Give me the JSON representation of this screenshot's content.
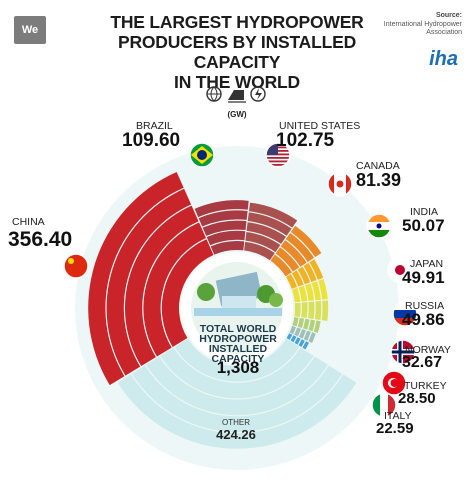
{
  "header": {
    "logo": "We",
    "title_line1": "THE LARGEST HYDROPOWER",
    "title_line2": "PRODUCERS BY INSTALLED CAPACITY",
    "title_line3": "IN THE WORLD",
    "source_label": "Source:",
    "source_name": "International Hydropower Association",
    "source_logo": "iha",
    "unit": "(GW)",
    "unit_icons": [
      "globe-icon",
      "dam-icon",
      "power-icon"
    ]
  },
  "center": {
    "title": "TOTAL WORLD HYDROPOWER INSTALLED CAPACITY",
    "value": "1,308"
  },
  "countries": [
    {
      "name": "CHINA",
      "value": "356.40",
      "flag": "china-flag"
    },
    {
      "name": "BRAZIL",
      "value": "109.60",
      "flag": "brazil-flag"
    },
    {
      "name": "UNITED STATES",
      "value": "102.75",
      "flag": "usa-flag"
    },
    {
      "name": "CANADA",
      "value": "81.39",
      "flag": "canada-flag"
    },
    {
      "name": "INDIA",
      "value": "50.07",
      "flag": "india-flag"
    },
    {
      "name": "JAPAN",
      "value": "49.91",
      "flag": "japan-flag"
    },
    {
      "name": "RUSSIA",
      "value": "49.86",
      "flag": "russia-flag"
    },
    {
      "name": "NORWAY",
      "value": "32.67",
      "flag": "norway-flag"
    },
    {
      "name": "TURKEY",
      "value": "28.50",
      "flag": "turkey-flag"
    },
    {
      "name": "ITALY",
      "value": "22.59",
      "flag": "italy-flag"
    }
  ],
  "other": {
    "name": "OTHER",
    "value": "424.26"
  },
  "colors": {
    "china": "#c8242a",
    "brazil": "#a73a42",
    "united_states": "#a9514f",
    "canada": "#e88a2a",
    "india": "#f1b324",
    "japan": "#ece23e",
    "russia": "#d9e05a",
    "norway": "#b4d07a",
    "turkey": "#9ec0b8",
    "italy": "#4aa3d9",
    "other": "#cdeaec"
  },
  "chart_data": {
    "type": "pie",
    "title": "THE LARGEST HYDROPOWER PRODUCERS BY INSTALLED CAPACITY IN THE WORLD",
    "unit": "GW",
    "total": 1308,
    "categories": [
      "CHINA",
      "BRAZIL",
      "UNITED STATES",
      "CANADA",
      "INDIA",
      "JAPAN",
      "RUSSIA",
      "NORWAY",
      "TURKEY",
      "ITALY",
      "OTHER"
    ],
    "values": [
      356.4,
      109.6,
      102.75,
      81.39,
      50.07,
      49.91,
      49.86,
      32.67,
      28.5,
      22.59,
      424.26
    ]
  }
}
